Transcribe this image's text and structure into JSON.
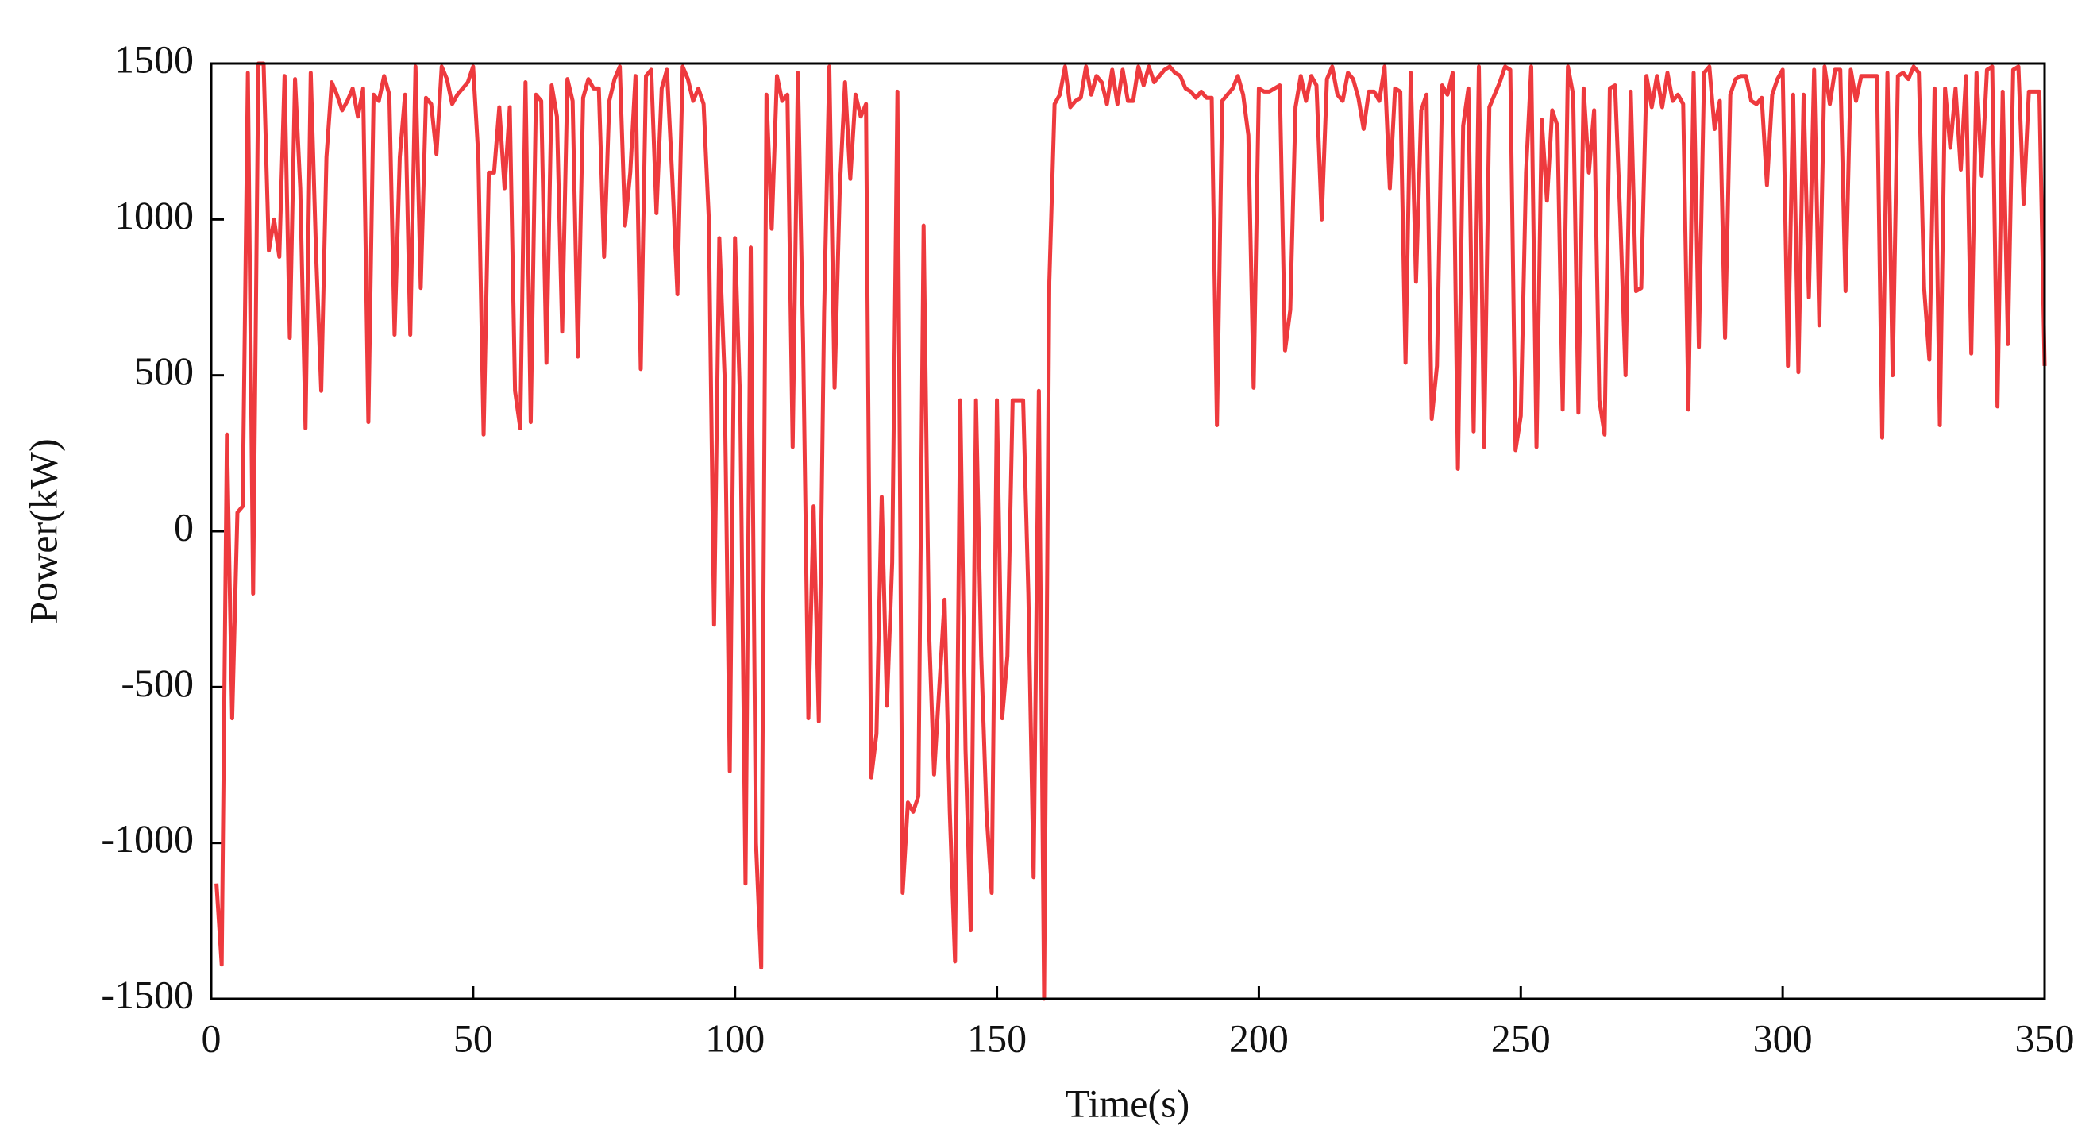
{
  "chart_data": {
    "type": "line",
    "x_label": "Time(s)",
    "y_label": "Power(kW)",
    "xlim": [
      0,
      350
    ],
    "xticks": [
      0,
      50,
      100,
      150,
      200,
      250,
      300,
      350
    ],
    "ylim": [
      -1500,
      1500
    ],
    "yticks": [
      -1500,
      -1000,
      -500,
      0,
      500,
      1000,
      1500
    ],
    "grid": false,
    "x": [
      1,
      2,
      3,
      4,
      5,
      6,
      7,
      8,
      9,
      10,
      11,
      12,
      13,
      14,
      15,
      16,
      17,
      18,
      19,
      20,
      21,
      22,
      23,
      24,
      25,
      26,
      27,
      28,
      29,
      30,
      31,
      32,
      33,
      34,
      35,
      36,
      37,
      38,
      39,
      40,
      41,
      42,
      43,
      44,
      45,
      46,
      47,
      48,
      49,
      50,
      51,
      52,
      53,
      54,
      55,
      56,
      57,
      58,
      59,
      60,
      61,
      62,
      63,
      64,
      65,
      66,
      67,
      68,
      69,
      70,
      71,
      72,
      73,
      74,
      75,
      76,
      77,
      78,
      79,
      80,
      81,
      82,
      83,
      84,
      85,
      86,
      87,
      88,
      89,
      90,
      91,
      92,
      93,
      94,
      95,
      96,
      97,
      98,
      99,
      100,
      101,
      102,
      103,
      104,
      105,
      106,
      107,
      108,
      109,
      110,
      111,
      112,
      113,
      114,
      115,
      116,
      117,
      118,
      119,
      120,
      121,
      122,
      123,
      124,
      125,
      126,
      127,
      128,
      129,
      130,
      131,
      132,
      133,
      134,
      135,
      136,
      137,
      138,
      139,
      140,
      141,
      142,
      143,
      144,
      145,
      146,
      147,
      148,
      149,
      150,
      151,
      152,
      153,
      154,
      155,
      156,
      157,
      158,
      159,
      160,
      161,
      162,
      163,
      164,
      165,
      166,
      167,
      168,
      169,
      170,
      171,
      172,
      173,
      174,
      175,
      176,
      177,
      178,
      179,
      180,
      181,
      182,
      183,
      184,
      185,
      186,
      187,
      188,
      189,
      190,
      191,
      192,
      193,
      194,
      195,
      196,
      197,
      198,
      199,
      200,
      201,
      202,
      203,
      204,
      205,
      206,
      207,
      208,
      209,
      210,
      211,
      212,
      213,
      214,
      215,
      216,
      217,
      218,
      219,
      220,
      221,
      222,
      223,
      224,
      225,
      226,
      227,
      228,
      229,
      230,
      231,
      232,
      233,
      234,
      235,
      236,
      237,
      238,
      239,
      240,
      241,
      242,
      243,
      244,
      245,
      246,
      247,
      248,
      249,
      250,
      251,
      252,
      253,
      254,
      255,
      256,
      257,
      258,
      259,
      260,
      261,
      262,
      263,
      264,
      265,
      266,
      267,
      268,
      269,
      270,
      271,
      272,
      273,
      274,
      275,
      276,
      277,
      278,
      279,
      280,
      281,
      282,
      283,
      284,
      285,
      286,
      287,
      288,
      289,
      290,
      291,
      292,
      293,
      294,
      295,
      296,
      297,
      298,
      299,
      300,
      301,
      302,
      303,
      304,
      305,
      306,
      307,
      308,
      309,
      310,
      311,
      312,
      313,
      314,
      315,
      316,
      317,
      318,
      319,
      320,
      321,
      322,
      323,
      324,
      325,
      326,
      327,
      328,
      329,
      330,
      331,
      332,
      333,
      334,
      335,
      336,
      337,
      338,
      339,
      340,
      341,
      342,
      343,
      344,
      345,
      346,
      347,
      348,
      349,
      350
    ],
    "series": [
      {
        "color": "#ee3a3e",
        "values": [
          -1130,
          -1390,
          310,
          -600,
          60,
          80,
          1470,
          -200,
          1500,
          1500,
          900,
          1000,
          880,
          1460,
          620,
          1450,
          1100,
          330,
          1470,
          900,
          450,
          1200,
          1440,
          1400,
          1350,
          1380,
          1420,
          1330,
          1420,
          350,
          1400,
          1380,
          1460,
          1400,
          630,
          1200,
          1400,
          630,
          1490,
          780,
          1390,
          1370,
          1210,
          1490,
          1450,
          1370,
          1400,
          1420,
          1440,
          1490,
          1200,
          310,
          1150,
          1150,
          1360,
          1100,
          1360,
          450,
          330,
          1440,
          350,
          1400,
          1380,
          540,
          1430,
          1330,
          640,
          1450,
          1380,
          560,
          1390,
          1450,
          1420,
          1420,
          880,
          1380,
          1450,
          1490,
          980,
          1150,
          1460,
          520,
          1460,
          1480,
          1020,
          1420,
          1480,
          1140,
          760,
          1490,
          1450,
          1380,
          1420,
          1370,
          1000,
          -300,
          940,
          500,
          -770,
          940,
          400,
          -1130,
          910,
          -1000,
          -1400,
          1400,
          970,
          1460,
          1380,
          1400,
          270,
          1470,
          600,
          -600,
          80,
          -610,
          700,
          1490,
          460,
          1100,
          1440,
          1130,
          1400,
          1330,
          1370,
          -790,
          -650,
          110,
          -560,
          -100,
          1410,
          -1160,
          -870,
          -900,
          -850,
          980,
          -300,
          -780,
          -500,
          -220,
          -900,
          -1380,
          420,
          -700,
          -1280,
          420,
          -400,
          -900,
          -1160,
          420,
          -600,
          -400,
          420,
          420,
          420,
          -200,
          -1110,
          450,
          -1500,
          800,
          1370,
          1400,
          1490,
          1360,
          1380,
          1390,
          1490,
          1400,
          1460,
          1440,
          1370,
          1480,
          1370,
          1480,
          1380,
          1380,
          1490,
          1430,
          1490,
          1440,
          1460,
          1480,
          1490,
          1470,
          1460,
          1420,
          1410,
          1390,
          1410,
          1390,
          1390,
          340,
          1380,
          1400,
          1420,
          1460,
          1400,
          1270,
          460,
          1420,
          1410,
          1410,
          1420,
          1430,
          580,
          710,
          1360,
          1460,
          1380,
          1460,
          1430,
          1000,
          1450,
          1490,
          1400,
          1380,
          1470,
          1450,
          1390,
          1290,
          1410,
          1410,
          1380,
          1490,
          1100,
          1420,
          1410,
          540,
          1470,
          800,
          1350,
          1400,
          360,
          530,
          1430,
          1400,
          1470,
          200,
          1300,
          1420,
          320,
          1490,
          270,
          1360,
          1400,
          1440,
          1490,
          1480,
          260,
          370,
          1150,
          1490,
          270,
          1320,
          1060,
          1350,
          1300,
          390,
          1490,
          1400,
          380,
          1420,
          1150,
          1350,
          420,
          310,
          1420,
          1430,
          1000,
          500,
          1410,
          770,
          780,
          1460,
          1360,
          1460,
          1360,
          1470,
          1380,
          1400,
          1370,
          390,
          1470,
          590,
          1470,
          1490,
          1290,
          1380,
          620,
          1400,
          1450,
          1460,
          1460,
          1380,
          1370,
          1390,
          1110,
          1400,
          1450,
          1480,
          530,
          1400,
          510,
          1400,
          750,
          1480,
          660,
          1490,
          1370,
          1480,
          1480,
          770,
          1480,
          1380,
          1460,
          1460,
          1460,
          1460,
          300,
          1470,
          500,
          1460,
          1470,
          1450,
          1490,
          1470,
          780,
          550,
          1420,
          340,
          1420,
          1230,
          1420,
          1160,
          1460,
          570,
          1470,
          1140,
          1480,
          1490,
          400,
          1410,
          600,
          1480,
          1490,
          1050,
          1410,
          1410,
          1410,
          530
        ]
      }
    ]
  }
}
